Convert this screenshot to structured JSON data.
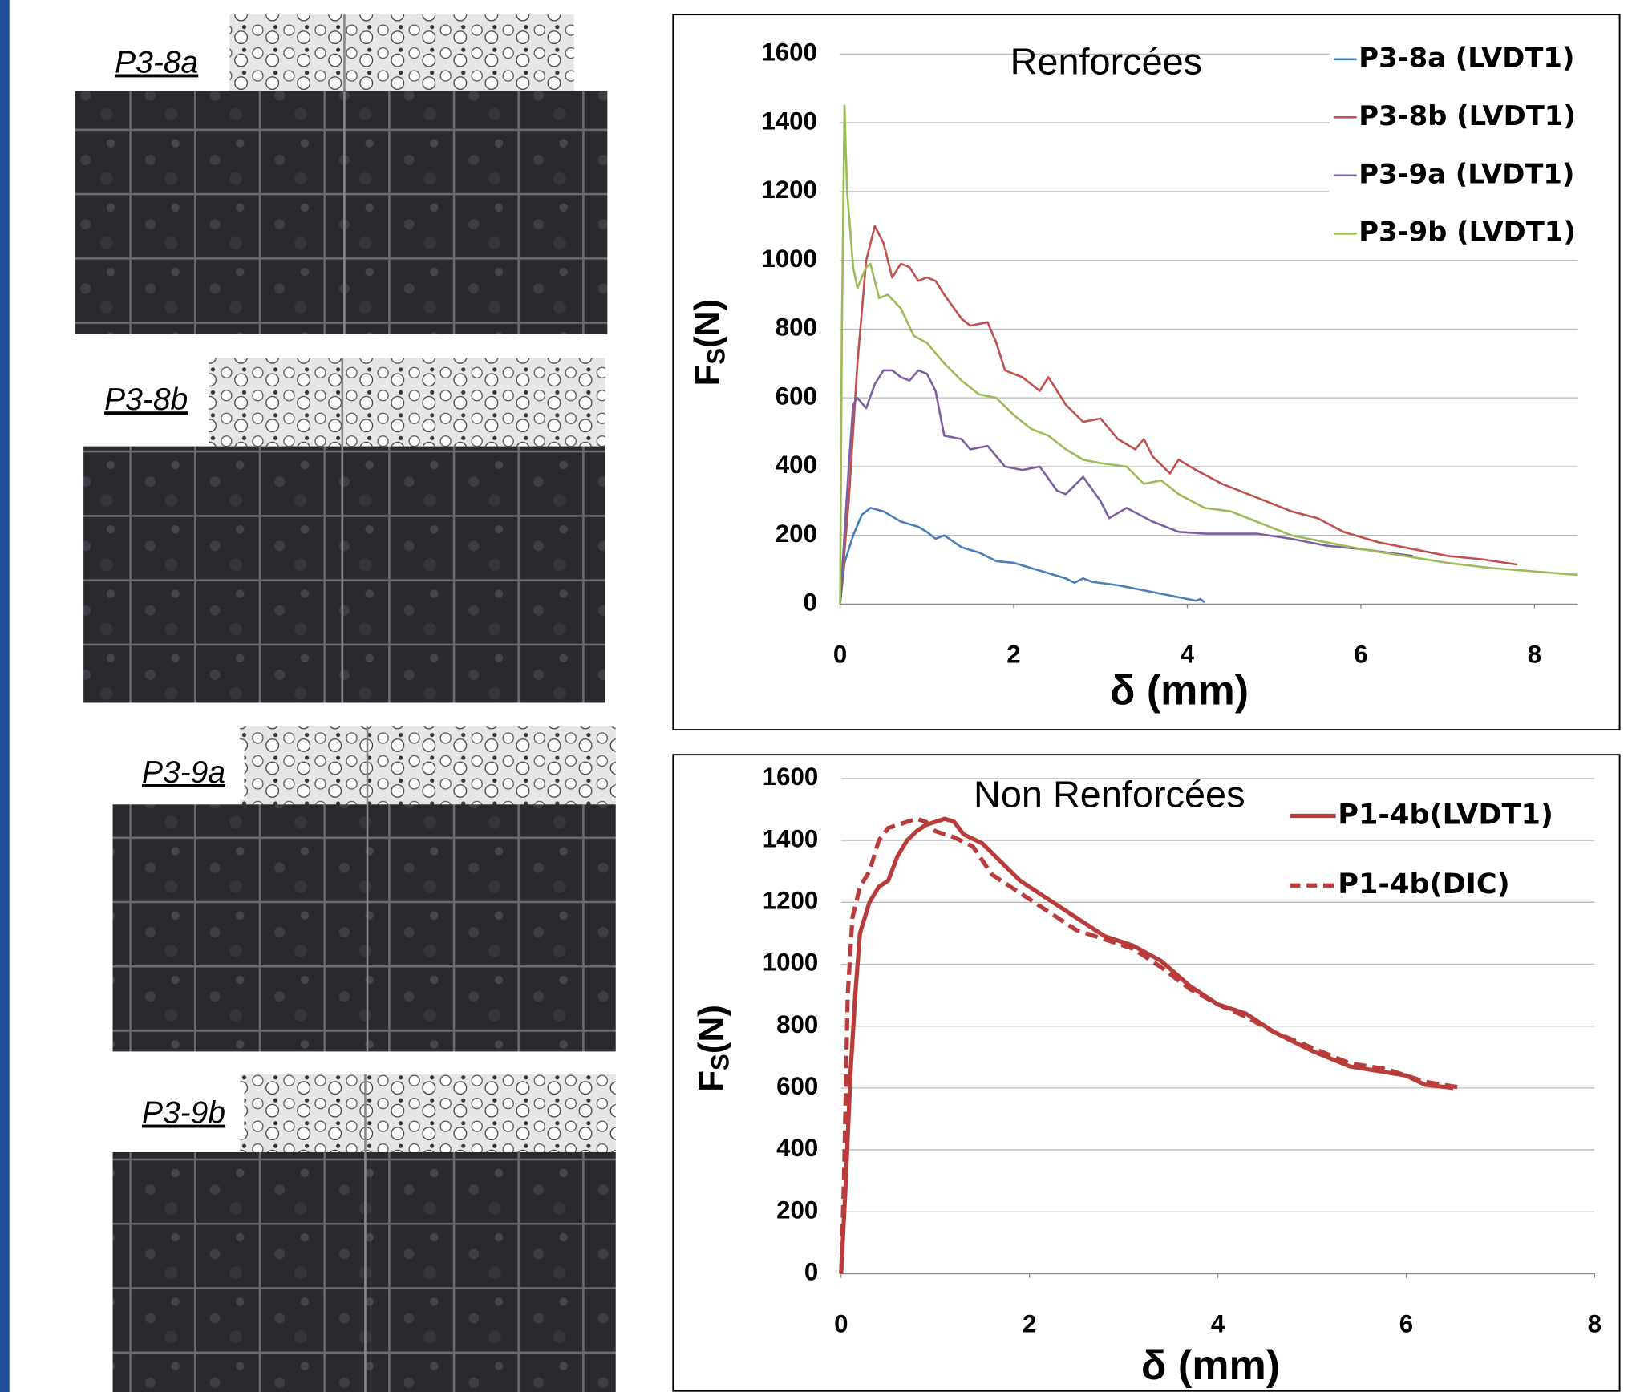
{
  "photos": {
    "labels": [
      "P3-8a",
      "P3-8b",
      "P3-9a",
      "P3-9b"
    ]
  },
  "chart_data": [
    {
      "type": "line",
      "title": "Renforcées",
      "xlabel": "δ (mm)",
      "ylabel": "F",
      "ylabel_subscript": "S",
      "ylabel_unit": "(N)",
      "xlim": [
        0,
        8.5
      ],
      "ylim": [
        0,
        1600
      ],
      "xticks": [
        0,
        2,
        4,
        6,
        8
      ],
      "yticks": [
        0,
        200,
        400,
        600,
        800,
        1000,
        1200,
        1400,
        1600
      ],
      "grid": true,
      "legend": "upper right",
      "series": [
        {
          "name": "P3-8a (LVDT1)",
          "color": "#4a7ebb",
          "x": [
            0,
            0.05,
            0.15,
            0.25,
            0.35,
            0.5,
            0.7,
            0.9,
            1.0,
            1.1,
            1.2,
            1.4,
            1.6,
            1.8,
            2.0,
            2.2,
            2.4,
            2.6,
            2.7,
            2.8,
            2.9,
            3.2,
            3.6,
            4.0,
            4.1,
            4.15,
            4.2
          ],
          "values": [
            0,
            120,
            200,
            260,
            280,
            270,
            240,
            225,
            210,
            190,
            200,
            165,
            150,
            125,
            120,
            105,
            90,
            75,
            62,
            75,
            65,
            55,
            35,
            15,
            10,
            15,
            5
          ]
        },
        {
          "name": "P3-8b (LVDT1)",
          "color": "#c0504d",
          "x": [
            0,
            0.1,
            0.2,
            0.3,
            0.4,
            0.5,
            0.6,
            0.7,
            0.8,
            0.9,
            1.0,
            1.1,
            1.2,
            1.4,
            1.5,
            1.7,
            1.8,
            1.9,
            2.1,
            2.3,
            2.4,
            2.6,
            2.8,
            3.0,
            3.2,
            3.4,
            3.5,
            3.6,
            3.8,
            3.9,
            4.1,
            4.4,
            4.8,
            5.2,
            5.5,
            5.8,
            6.2,
            6.6,
            7.0,
            7.4,
            7.8
          ],
          "values": [
            0,
            300,
            700,
            1000,
            1100,
            1050,
            950,
            990,
            980,
            940,
            950,
            940,
            900,
            830,
            810,
            820,
            760,
            680,
            660,
            620,
            660,
            580,
            530,
            540,
            480,
            450,
            480,
            430,
            380,
            420,
            390,
            350,
            310,
            270,
            250,
            210,
            180,
            160,
            140,
            130,
            115
          ]
        },
        {
          "name": "P3-9a (LVDT1)",
          "color": "#7d5fa0",
          "x": [
            0,
            0.1,
            0.15,
            0.2,
            0.3,
            0.4,
            0.5,
            0.6,
            0.7,
            0.8,
            0.9,
            1.0,
            1.1,
            1.2,
            1.4,
            1.5,
            1.7,
            1.9,
            2.1,
            2.3,
            2.5,
            2.6,
            2.8,
            3.0,
            3.1,
            3.3,
            3.6,
            3.9,
            4.2,
            4.8,
            5.2,
            5.6,
            6.0,
            6.6
          ],
          "values": [
            0,
            400,
            580,
            600,
            570,
            640,
            680,
            680,
            660,
            650,
            680,
            670,
            620,
            490,
            480,
            450,
            460,
            400,
            390,
            400,
            330,
            320,
            370,
            300,
            250,
            280,
            240,
            210,
            205,
            205,
            190,
            170,
            160,
            140
          ]
        },
        {
          "name": "P3-9b (LVDT1)",
          "color": "#9bbb59",
          "x": [
            0,
            0.02,
            0.05,
            0.08,
            0.15,
            0.2,
            0.3,
            0.35,
            0.45,
            0.55,
            0.7,
            0.85,
            1.0,
            1.2,
            1.4,
            1.6,
            1.8,
            2.0,
            2.2,
            2.4,
            2.6,
            2.8,
            3.0,
            3.3,
            3.5,
            3.7,
            3.9,
            4.2,
            4.5,
            4.8,
            5.2,
            5.6,
            6.0,
            6.5,
            7.0,
            7.5,
            8.0,
            8.5
          ],
          "values": [
            0,
            800,
            1450,
            1200,
            980,
            920,
            980,
            990,
            890,
            900,
            860,
            780,
            760,
            700,
            650,
            610,
            600,
            550,
            510,
            490,
            450,
            420,
            410,
            400,
            350,
            360,
            320,
            280,
            270,
            240,
            200,
            180,
            160,
            140,
            120,
            105,
            95,
            85
          ]
        }
      ]
    },
    {
      "type": "line",
      "title": "Non Renforcées",
      "xlabel": "δ (mm)",
      "ylabel": "F",
      "ylabel_subscript": "S",
      "ylabel_unit": "(N)",
      "xlim": [
        0,
        8
      ],
      "ylim": [
        0,
        1600
      ],
      "xticks": [
        0,
        2,
        4,
        6,
        8
      ],
      "yticks": [
        0,
        200,
        400,
        600,
        800,
        1000,
        1200,
        1400,
        1600
      ],
      "grid": true,
      "legend": "upper right",
      "series": [
        {
          "name": "P1-4b(LVDT1)",
          "color": "#b83c3a",
          "style": "solid",
          "x": [
            0,
            0.05,
            0.1,
            0.15,
            0.2,
            0.3,
            0.4,
            0.5,
            0.6,
            0.7,
            0.8,
            0.9,
            1.0,
            1.1,
            1.2,
            1.3,
            1.5,
            1.7,
            1.9,
            2.2,
            2.5,
            2.8,
            3.1,
            3.4,
            3.7,
            4.0,
            4.3,
            4.6,
            5.0,
            5.4,
            5.8,
            6.0,
            6.2,
            6.5
          ],
          "values": [
            0,
            300,
            650,
            900,
            1100,
            1200,
            1250,
            1270,
            1350,
            1400,
            1430,
            1450,
            1460,
            1470,
            1460,
            1420,
            1390,
            1330,
            1270,
            1210,
            1150,
            1090,
            1060,
            1010,
            930,
            870,
            840,
            780,
            720,
            670,
            650,
            640,
            610,
            600
          ]
        },
        {
          "name": "P1-4b(DIC)",
          "color": "#b83c3a",
          "style": "dashed",
          "x": [
            0,
            0.03,
            0.07,
            0.12,
            0.2,
            0.3,
            0.4,
            0.5,
            0.6,
            0.8,
            0.9,
            1.0,
            1.2,
            1.4,
            1.6,
            1.9,
            2.2,
            2.5,
            2.8,
            3.1,
            3.4,
            3.7,
            4.0,
            4.3,
            4.6,
            5.0,
            5.4,
            5.8,
            6.2,
            6.6
          ],
          "values": [
            0,
            300,
            900,
            1150,
            1250,
            1300,
            1400,
            1440,
            1450,
            1470,
            1460,
            1430,
            1410,
            1380,
            1290,
            1230,
            1170,
            1110,
            1080,
            1050,
            990,
            920,
            870,
            830,
            780,
            730,
            680,
            660,
            620,
            600
          ]
        }
      ]
    }
  ]
}
